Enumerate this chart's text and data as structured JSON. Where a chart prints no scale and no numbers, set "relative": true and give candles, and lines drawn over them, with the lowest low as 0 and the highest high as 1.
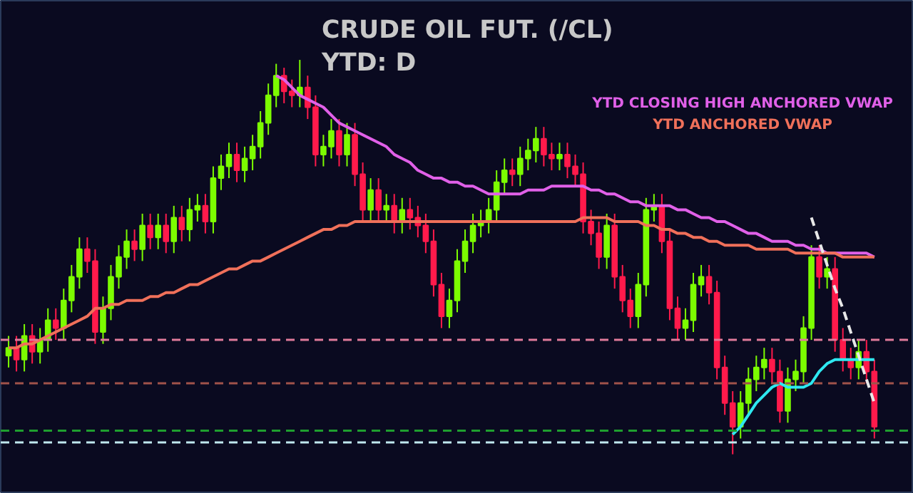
{
  "chart_data": {
    "type": "candlestick",
    "title": "CRUDE OIL FUT. (/CL)",
    "subtitle": "YTD: D",
    "relative": true,
    "tick_labels": false,
    "grid": false,
    "categories": [
      null,
      null,
      null,
      null,
      null,
      null,
      null,
      null,
      null,
      null,
      null,
      null,
      null,
      null,
      null,
      null,
      null,
      null,
      null,
      null,
      null,
      null,
      null,
      null,
      null,
      null,
      null,
      null,
      null,
      null,
      null,
      null,
      null,
      null,
      null,
      null,
      null,
      null,
      null,
      null,
      null,
      null,
      null,
      null,
      null,
      null,
      null,
      null,
      null,
      null,
      null,
      null,
      null,
      null,
      null,
      null,
      null,
      null,
      null,
      null,
      null,
      null,
      null,
      null,
      null,
      null,
      null,
      null,
      null,
      null,
      null,
      null,
      null,
      null,
      null,
      null,
      null,
      null,
      null,
      null,
      null,
      null,
      null,
      null,
      null,
      null,
      null,
      null,
      null,
      null,
      null,
      null,
      null,
      null,
      null,
      null,
      null,
      null,
      null,
      null,
      null,
      null,
      null,
      null,
      null,
      null,
      null,
      null,
      null,
      null,
      null
    ],
    "ohlc": [
      [
        0.25,
        0.3,
        0.22,
        0.27
      ],
      [
        0.27,
        0.3,
        0.21,
        0.24
      ],
      [
        0.24,
        0.33,
        0.21,
        0.3
      ],
      [
        0.3,
        0.33,
        0.23,
        0.26
      ],
      [
        0.26,
        0.32,
        0.23,
        0.29
      ],
      [
        0.29,
        0.37,
        0.26,
        0.34
      ],
      [
        0.34,
        0.37,
        0.29,
        0.32
      ],
      [
        0.32,
        0.42,
        0.29,
        0.39
      ],
      [
        0.39,
        0.48,
        0.36,
        0.45
      ],
      [
        0.45,
        0.55,
        0.42,
        0.52
      ],
      [
        0.52,
        0.55,
        0.46,
        0.49
      ],
      [
        0.49,
        0.52,
        0.28,
        0.31
      ],
      [
        0.31,
        0.4,
        0.28,
        0.37
      ],
      [
        0.37,
        0.48,
        0.34,
        0.45
      ],
      [
        0.45,
        0.53,
        0.42,
        0.5
      ],
      [
        0.5,
        0.57,
        0.47,
        0.54
      ],
      [
        0.54,
        0.57,
        0.49,
        0.52
      ],
      [
        0.52,
        0.61,
        0.49,
        0.58
      ],
      [
        0.58,
        0.61,
        0.52,
        0.55
      ],
      [
        0.55,
        0.61,
        0.52,
        0.58
      ],
      [
        0.58,
        0.61,
        0.51,
        0.54
      ],
      [
        0.54,
        0.63,
        0.51,
        0.6
      ],
      [
        0.6,
        0.63,
        0.54,
        0.57
      ],
      [
        0.57,
        0.65,
        0.54,
        0.62
      ],
      [
        0.62,
        0.66,
        0.59,
        0.63
      ],
      [
        0.63,
        0.66,
        0.56,
        0.59
      ],
      [
        0.59,
        0.73,
        0.56,
        0.7
      ],
      [
        0.7,
        0.76,
        0.67,
        0.73
      ],
      [
        0.73,
        0.79,
        0.7,
        0.76
      ],
      [
        0.76,
        0.79,
        0.69,
        0.72
      ],
      [
        0.72,
        0.78,
        0.69,
        0.75
      ],
      [
        0.75,
        0.81,
        0.72,
        0.78
      ],
      [
        0.78,
        0.87,
        0.75,
        0.84
      ],
      [
        0.84,
        0.94,
        0.81,
        0.91
      ],
      [
        0.91,
        0.99,
        0.88,
        0.96
      ],
      [
        0.96,
        0.98,
        0.89,
        0.92
      ],
      [
        0.92,
        0.95,
        0.88,
        0.91
      ],
      [
        0.91,
        1.0,
        0.88,
        0.93
      ],
      [
        0.93,
        0.96,
        0.85,
        0.88
      ],
      [
        0.88,
        0.91,
        0.73,
        0.76
      ],
      [
        0.76,
        0.81,
        0.73,
        0.78
      ],
      [
        0.78,
        0.85,
        0.75,
        0.82
      ],
      [
        0.82,
        0.85,
        0.73,
        0.76
      ],
      [
        0.76,
        0.84,
        0.73,
        0.81
      ],
      [
        0.81,
        0.84,
        0.68,
        0.71
      ],
      [
        0.71,
        0.74,
        0.59,
        0.62
      ],
      [
        0.62,
        0.7,
        0.59,
        0.67
      ],
      [
        0.67,
        0.7,
        0.59,
        0.62
      ],
      [
        0.62,
        0.66,
        0.59,
        0.63
      ],
      [
        0.63,
        0.66,
        0.56,
        0.59
      ],
      [
        0.59,
        0.65,
        0.56,
        0.62
      ],
      [
        0.62,
        0.65,
        0.57,
        0.6
      ],
      [
        0.6,
        0.63,
        0.55,
        0.58
      ],
      [
        0.58,
        0.61,
        0.51,
        0.54
      ],
      [
        0.54,
        0.57,
        0.4,
        0.43
      ],
      [
        0.43,
        0.46,
        0.32,
        0.35
      ],
      [
        0.35,
        0.42,
        0.32,
        0.39
      ],
      [
        0.39,
        0.52,
        0.36,
        0.49
      ],
      [
        0.49,
        0.57,
        0.46,
        0.54
      ],
      [
        0.54,
        0.61,
        0.51,
        0.58
      ],
      [
        0.58,
        0.62,
        0.55,
        0.59
      ],
      [
        0.59,
        0.65,
        0.56,
        0.62
      ],
      [
        0.62,
        0.72,
        0.59,
        0.69
      ],
      [
        0.69,
        0.75,
        0.66,
        0.72
      ],
      [
        0.72,
        0.75,
        0.68,
        0.71
      ],
      [
        0.71,
        0.78,
        0.68,
        0.75
      ],
      [
        0.75,
        0.8,
        0.72,
        0.77
      ],
      [
        0.77,
        0.83,
        0.74,
        0.8
      ],
      [
        0.8,
        0.83,
        0.73,
        0.76
      ],
      [
        0.76,
        0.79,
        0.72,
        0.75
      ],
      [
        0.75,
        0.79,
        0.72,
        0.76
      ],
      [
        0.76,
        0.79,
        0.7,
        0.73
      ],
      [
        0.73,
        0.76,
        0.68,
        0.71
      ],
      [
        0.71,
        0.74,
        0.56,
        0.59
      ],
      [
        0.59,
        0.62,
        0.53,
        0.56
      ],
      [
        0.56,
        0.59,
        0.47,
        0.5
      ],
      [
        0.5,
        0.61,
        0.47,
        0.58
      ],
      [
        0.58,
        0.61,
        0.42,
        0.45
      ],
      [
        0.45,
        0.48,
        0.36,
        0.39
      ],
      [
        0.39,
        0.42,
        0.32,
        0.35
      ],
      [
        0.35,
        0.46,
        0.32,
        0.43
      ],
      [
        0.43,
        0.65,
        0.4,
        0.62
      ],
      [
        0.62,
        0.66,
        0.59,
        0.63
      ],
      [
        0.63,
        0.66,
        0.51,
        0.54
      ],
      [
        0.54,
        0.57,
        0.34,
        0.37
      ],
      [
        0.37,
        0.4,
        0.29,
        0.32
      ],
      [
        0.32,
        0.37,
        0.29,
        0.34
      ],
      [
        0.34,
        0.46,
        0.31,
        0.43
      ],
      [
        0.43,
        0.48,
        0.4,
        0.45
      ],
      [
        0.45,
        0.48,
        0.38,
        0.41
      ],
      [
        0.41,
        0.44,
        0.19,
        0.22
      ],
      [
        0.22,
        0.25,
        0.1,
        0.13
      ],
      [
        0.13,
        0.16,
        0.0,
        0.07
      ],
      [
        0.07,
        0.16,
        0.04,
        0.13
      ],
      [
        0.13,
        0.22,
        0.1,
        0.19
      ],
      [
        0.19,
        0.25,
        0.16,
        0.22
      ],
      [
        0.22,
        0.27,
        0.19,
        0.24
      ],
      [
        0.24,
        0.27,
        0.18,
        0.21
      ],
      [
        0.21,
        0.24,
        0.08,
        0.11
      ],
      [
        0.11,
        0.22,
        0.08,
        0.19
      ],
      [
        0.19,
        0.24,
        0.16,
        0.21
      ],
      [
        0.21,
        0.35,
        0.18,
        0.32
      ],
      [
        0.32,
        0.53,
        0.29,
        0.5
      ],
      [
        0.5,
        0.53,
        0.42,
        0.45
      ],
      [
        0.45,
        0.5,
        0.42,
        0.47
      ],
      [
        0.47,
        0.5,
        0.26,
        0.29
      ],
      [
        0.29,
        0.32,
        0.21,
        0.24
      ],
      [
        0.24,
        0.27,
        0.19,
        0.22
      ],
      [
        0.22,
        0.29,
        0.19,
        0.26
      ],
      [
        0.26,
        0.29,
        0.18,
        0.21
      ],
      [
        0.21,
        0.24,
        0.04,
        0.07
      ]
    ],
    "series": [
      {
        "type": "line",
        "name": "YTD CLOSING HIGH ANCHORED VWAP",
        "color": "#e060e8",
        "values": [
          null,
          null,
          null,
          null,
          null,
          null,
          null,
          null,
          null,
          null,
          null,
          null,
          null,
          null,
          null,
          null,
          null,
          null,
          null,
          null,
          null,
          null,
          null,
          null,
          null,
          null,
          null,
          null,
          null,
          null,
          null,
          null,
          null,
          null,
          0.96,
          0.95,
          0.93,
          0.91,
          0.9,
          0.89,
          0.88,
          0.86,
          0.84,
          0.83,
          0.82,
          0.81,
          0.8,
          0.79,
          0.78,
          0.76,
          0.75,
          0.74,
          0.72,
          0.71,
          0.7,
          0.7,
          0.69,
          0.69,
          0.68,
          0.68,
          0.67,
          0.66,
          0.66,
          0.66,
          0.66,
          0.66,
          0.67,
          0.67,
          0.67,
          0.68,
          0.68,
          0.68,
          0.68,
          0.68,
          0.67,
          0.67,
          0.66,
          0.66,
          0.65,
          0.64,
          0.64,
          0.63,
          0.63,
          0.63,
          0.63,
          0.62,
          0.62,
          0.61,
          0.6,
          0.6,
          0.59,
          0.59,
          0.58,
          0.57,
          0.56,
          0.56,
          0.55,
          0.54,
          0.54,
          0.54,
          0.53,
          0.53,
          0.52,
          0.52,
          0.51,
          0.51,
          0.51,
          0.51,
          0.51,
          0.51,
          0.5
        ]
      },
      {
        "type": "line",
        "name": "YTD ANCHORED VWAP",
        "color": "#f0705a",
        "values": [
          0.27,
          0.27,
          0.28,
          0.28,
          0.29,
          0.3,
          0.31,
          0.32,
          0.33,
          0.34,
          0.35,
          0.37,
          0.37,
          0.38,
          0.38,
          0.39,
          0.39,
          0.39,
          0.4,
          0.4,
          0.41,
          0.41,
          0.42,
          0.43,
          0.43,
          0.44,
          0.45,
          0.46,
          0.47,
          0.47,
          0.48,
          0.49,
          0.49,
          0.5,
          0.51,
          0.52,
          0.53,
          0.54,
          0.55,
          0.56,
          0.57,
          0.57,
          0.58,
          0.58,
          0.59,
          0.59,
          0.59,
          0.59,
          0.59,
          0.59,
          0.59,
          0.59,
          0.59,
          0.59,
          0.59,
          0.59,
          0.59,
          0.59,
          0.59,
          0.59,
          0.59,
          0.59,
          0.59,
          0.59,
          0.59,
          0.59,
          0.59,
          0.59,
          0.59,
          0.59,
          0.59,
          0.59,
          0.59,
          0.6,
          0.6,
          0.6,
          0.6,
          0.59,
          0.59,
          0.59,
          0.59,
          0.58,
          0.58,
          0.57,
          0.57,
          0.56,
          0.56,
          0.55,
          0.55,
          0.54,
          0.54,
          0.53,
          0.53,
          0.53,
          0.53,
          0.52,
          0.52,
          0.52,
          0.52,
          0.52,
          0.51,
          0.51,
          0.51,
          0.51,
          0.51,
          0.51,
          0.5,
          0.5,
          0.5,
          0.5,
          0.5
        ]
      },
      {
        "type": "line",
        "color": "#2ee8f0",
        "values": [
          null,
          null,
          null,
          null,
          null,
          null,
          null,
          null,
          null,
          null,
          null,
          null,
          null,
          null,
          null,
          null,
          null,
          null,
          null,
          null,
          null,
          null,
          null,
          null,
          null,
          null,
          null,
          null,
          null,
          null,
          null,
          null,
          null,
          null,
          null,
          null,
          null,
          null,
          null,
          null,
          null,
          null,
          null,
          null,
          null,
          null,
          null,
          null,
          null,
          null,
          null,
          null,
          null,
          null,
          null,
          null,
          null,
          null,
          null,
          null,
          null,
          null,
          null,
          null,
          null,
          null,
          null,
          null,
          null,
          null,
          null,
          null,
          null,
          null,
          null,
          null,
          null,
          null,
          null,
          null,
          null,
          null,
          null,
          null,
          null,
          null,
          null,
          null,
          null,
          null,
          null,
          null,
          0.05,
          0.07,
          0.1,
          0.13,
          0.15,
          0.17,
          0.18,
          0.17,
          0.17,
          0.17,
          0.18,
          0.21,
          0.23,
          0.24,
          0.24,
          0.24,
          0.24,
          0.24,
          0.24
        ]
      },
      {
        "type": "line",
        "color": "#e8e8e8",
        "line_style": "dashed",
        "values": [
          null,
          null,
          null,
          null,
          null,
          null,
          null,
          null,
          null,
          null,
          null,
          null,
          null,
          null,
          null,
          null,
          null,
          null,
          null,
          null,
          null,
          null,
          null,
          null,
          null,
          null,
          null,
          null,
          null,
          null,
          null,
          null,
          null,
          null,
          null,
          null,
          null,
          null,
          null,
          null,
          null,
          null,
          null,
          null,
          null,
          null,
          null,
          null,
          null,
          null,
          null,
          null,
          null,
          null,
          null,
          null,
          null,
          null,
          null,
          null,
          null,
          null,
          null,
          null,
          null,
          null,
          null,
          null,
          null,
          null,
          null,
          null,
          null,
          null,
          null,
          null,
          null,
          null,
          null,
          null,
          null,
          null,
          null,
          null,
          null,
          null,
          null,
          null,
          null,
          null,
          null,
          null,
          null,
          null,
          null,
          null,
          null,
          null,
          null,
          null,
          null,
          null,
          0.6,
          0.54,
          0.48,
          0.42,
          0.37,
          0.31,
          0.25,
          0.19,
          0.13
        ]
      }
    ],
    "ref_lines": [
      {
        "axis": "y",
        "value": 0.29,
        "color": "#e07a9a",
        "line_style": "dashed"
      },
      {
        "axis": "y",
        "value": 0.18,
        "color": "#a0524a",
        "line_style": "dashed"
      },
      {
        "axis": "y",
        "value": 0.06,
        "color": "#1f9f2f",
        "line_style": "dashed"
      },
      {
        "axis": "y",
        "value": 0.03,
        "color": "#bfe8ef",
        "line_style": "dashed"
      }
    ]
  }
}
